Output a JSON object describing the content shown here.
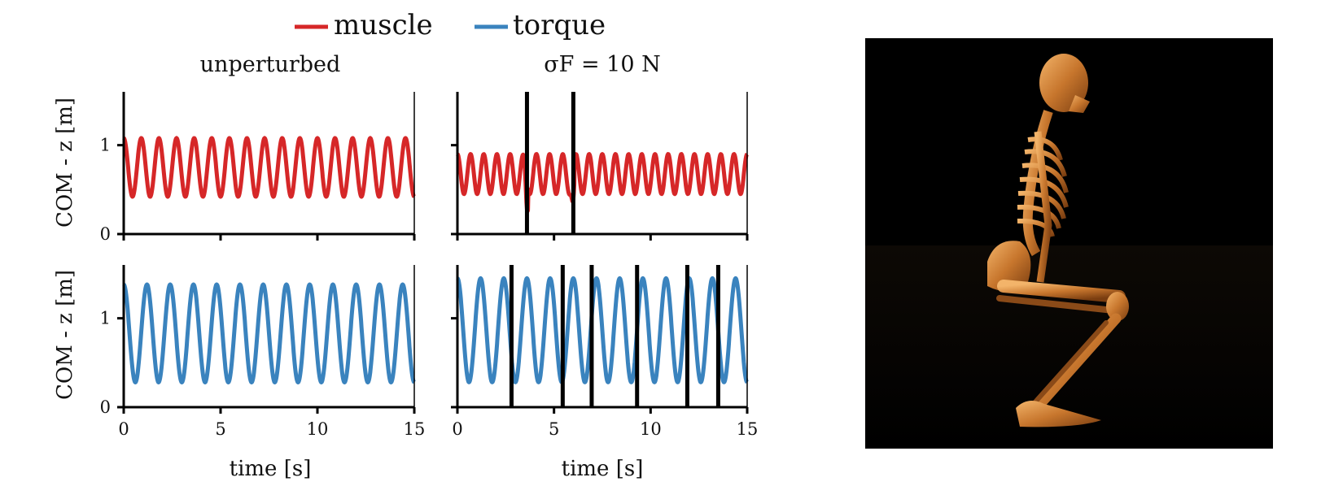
{
  "legend": [
    {
      "label": "muscle",
      "color": "#d62728"
    },
    {
      "label": "torque",
      "color": "#3a83be"
    }
  ],
  "chart_data": [
    {
      "type": "line",
      "title": "unperturbed",
      "ylabel": "COM - z [m]",
      "xlabel": "",
      "xlim": [
        0,
        15
      ],
      "ylim": [
        0,
        1.6
      ],
      "xticks": [
        0,
        5,
        10,
        15
      ],
      "yticks": [
        0,
        1
      ],
      "series": [
        {
          "name": "muscle",
          "color": "#d62728",
          "min": 0.42,
          "max": 1.08,
          "cycles": 16.5,
          "t0": 0.0
        }
      ],
      "markers": []
    },
    {
      "type": "line",
      "title": "σF = 10 N",
      "ylabel": "",
      "xlabel": "",
      "xlim": [
        0,
        15
      ],
      "ylim": [
        0,
        1.6
      ],
      "xticks": [
        0,
        5,
        10,
        15
      ],
      "yticks": [
        0,
        1
      ],
      "series": [
        {
          "name": "muscle",
          "color": "#d62728",
          "min": 0.45,
          "max": 0.9,
          "cycles": 22,
          "t0": 0.0
        }
      ],
      "markers": [
        3.6,
        6.0
      ]
    },
    {
      "type": "line",
      "title": "",
      "ylabel": "COM - z [m]",
      "xlabel": "time [s]",
      "xlim": [
        0,
        15
      ],
      "ylim": [
        0,
        1.6
      ],
      "xticks": [
        0,
        5,
        10,
        15
      ],
      "yticks": [
        0,
        1
      ],
      "xticklabels": [
        "0",
        "5",
        "10",
        "15"
      ],
      "series": [
        {
          "name": "torque",
          "color": "#3a83be",
          "min": 0.28,
          "max": 1.38,
          "cycles": 12.5,
          "t0": 0.0
        }
      ],
      "markers": []
    },
    {
      "type": "line",
      "title": "",
      "ylabel": "",
      "xlabel": "time [s]",
      "xlim": [
        0,
        15
      ],
      "ylim": [
        0,
        1.6
      ],
      "xticks": [
        0,
        5,
        10,
        15
      ],
      "yticks": [
        0,
        1
      ],
      "xticklabels": [
        "0",
        "5",
        "10",
        "15"
      ],
      "series": [
        {
          "name": "torque",
          "color": "#3a83be",
          "min": 0.28,
          "max": 1.45,
          "cycles": 12.5,
          "t0": 0.0
        }
      ],
      "markers": [
        2.8,
        5.45,
        6.95,
        9.3,
        11.9,
        13.5
      ]
    }
  ],
  "image": {
    "icon": "skeleton-squat-icon"
  }
}
